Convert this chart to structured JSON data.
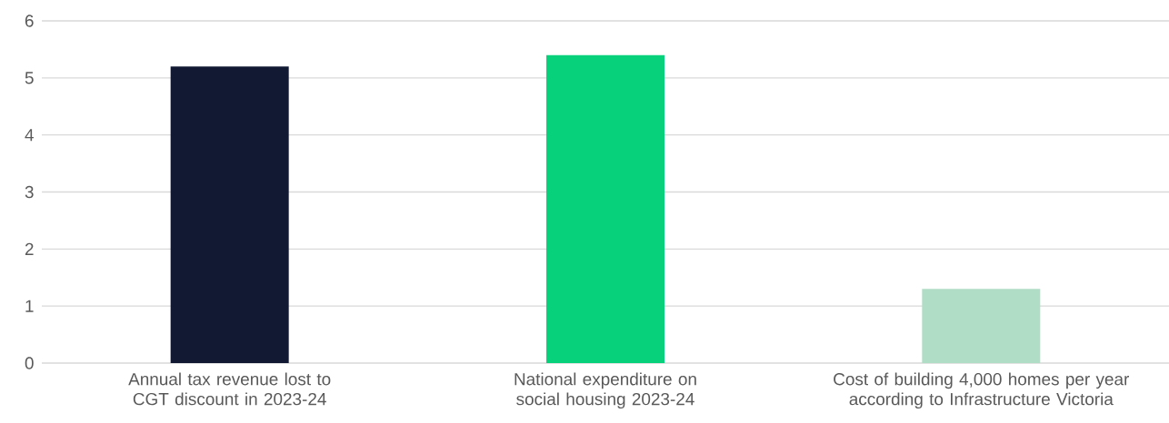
{
  "chart_data": {
    "type": "bar",
    "categories": [
      "Annual tax revenue lost to CGT discount in 2023-24",
      "National expenditure on social housing 2023-24",
      "Cost of building 4,000 homes per year according to Infrastructure Victoria"
    ],
    "values": [
      5.2,
      5.4,
      1.3
    ],
    "colors": [
      "#121a33",
      "#07d17b",
      "#b0ddc6"
    ],
    "ylim": [
      0,
      6
    ],
    "yticks": [
      0,
      1,
      2,
      3,
      4,
      5,
      6
    ],
    "grid": "y"
  }
}
